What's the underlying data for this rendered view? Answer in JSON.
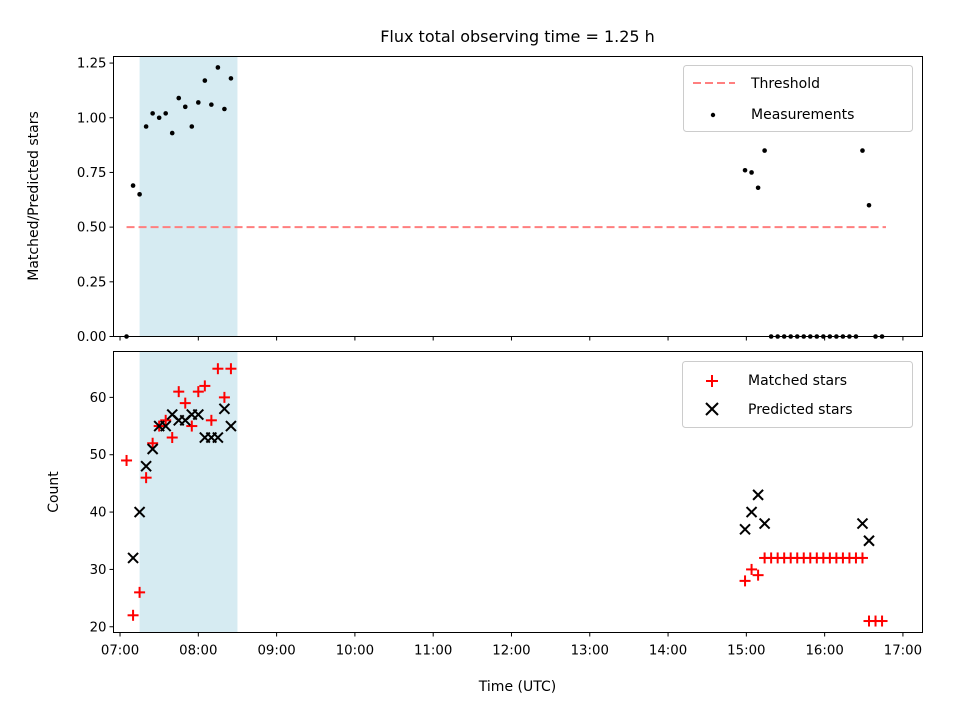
{
  "chart_data": [
    {
      "type": "scatter",
      "title": "Flux total observing time = 1.25 h",
      "xlabel": "",
      "ylabel": "Matched/Predicted stars",
      "xlim": [
        "06:55",
        "17:15"
      ],
      "ylim": [
        0,
        1.28
      ],
      "yticks": [
        "0.00",
        "0.25",
        "0.50",
        "0.75",
        "1.00",
        "1.25"
      ],
      "shaded_span": [
        "07:15",
        "08:30"
      ],
      "grid": false,
      "legend_position": "top-right",
      "threshold": {
        "label": "Threshold",
        "value": 0.5,
        "x_from": "07:05",
        "x_to": "16:47",
        "color": "#ff7f7f"
      },
      "series": [
        {
          "name": "Measurements",
          "color": "#000000",
          "points": [
            [
              "07:05",
              0.0
            ],
            [
              "07:10",
              0.69
            ],
            [
              "07:15",
              0.65
            ],
            [
              "07:20",
              0.96
            ],
            [
              "07:25",
              1.02
            ],
            [
              "07:30",
              1.0
            ],
            [
              "07:35",
              1.02
            ],
            [
              "07:40",
              0.93
            ],
            [
              "07:45",
              1.09
            ],
            [
              "07:50",
              1.05
            ],
            [
              "07:55",
              0.96
            ],
            [
              "08:00",
              1.07
            ],
            [
              "08:05",
              1.17
            ],
            [
              "08:10",
              1.06
            ],
            [
              "08:15",
              1.23
            ],
            [
              "08:20",
              1.04
            ],
            [
              "08:25",
              1.18
            ],
            [
              "14:59",
              0.76
            ],
            [
              "15:04",
              0.75
            ],
            [
              "15:09",
              0.68
            ],
            [
              "15:14",
              0.85
            ],
            [
              "15:19",
              0.0
            ],
            [
              "15:24",
              0.0
            ],
            [
              "15:29",
              0.0
            ],
            [
              "15:34",
              0.0
            ],
            [
              "15:39",
              0.0
            ],
            [
              "15:44",
              0.0
            ],
            [
              "15:49",
              0.0
            ],
            [
              "15:54",
              0.0
            ],
            [
              "15:59",
              0.0
            ],
            [
              "16:04",
              0.0
            ],
            [
              "16:09",
              0.0
            ],
            [
              "16:14",
              0.0
            ],
            [
              "16:19",
              0.0
            ],
            [
              "16:24",
              0.0
            ],
            [
              "16:29",
              0.85
            ],
            [
              "16:34",
              0.6
            ],
            [
              "16:39",
              0.0
            ],
            [
              "16:44",
              0.0
            ]
          ]
        }
      ]
    },
    {
      "type": "scatter",
      "title": "",
      "xlabel": "Time (UTC)",
      "ylabel": "Count",
      "xlim": [
        "06:55",
        "17:15"
      ],
      "ylim": [
        19,
        68
      ],
      "yticks": [
        "20",
        "30",
        "40",
        "50",
        "60"
      ],
      "xticks": [
        "07:00",
        "08:00",
        "09:00",
        "10:00",
        "11:00",
        "12:00",
        "13:00",
        "14:00",
        "15:00",
        "16:00",
        "17:00"
      ],
      "shaded_span": [
        "07:15",
        "08:30"
      ],
      "grid": false,
      "legend_position": "top-right",
      "series": [
        {
          "name": "Matched stars",
          "marker": "plus",
          "color": "#ff0000",
          "points": [
            [
              "07:05",
              49
            ],
            [
              "07:10",
              22
            ],
            [
              "07:15",
              26
            ],
            [
              "07:20",
              46
            ],
            [
              "07:25",
              52
            ],
            [
              "07:30",
              55
            ],
            [
              "07:35",
              56
            ],
            [
              "07:40",
              53
            ],
            [
              "07:45",
              61
            ],
            [
              "07:50",
              59
            ],
            [
              "07:55",
              55
            ],
            [
              "08:00",
              61
            ],
            [
              "08:05",
              62
            ],
            [
              "08:10",
              56
            ],
            [
              "08:15",
              65
            ],
            [
              "08:20",
              60
            ],
            [
              "08:25",
              65
            ],
            [
              "14:59",
              28
            ],
            [
              "15:04",
              30
            ],
            [
              "15:09",
              29
            ],
            [
              "15:14",
              32
            ],
            [
              "15:19",
              32
            ],
            [
              "15:24",
              32
            ],
            [
              "15:29",
              32
            ],
            [
              "15:34",
              32
            ],
            [
              "15:39",
              32
            ],
            [
              "15:44",
              32
            ],
            [
              "15:49",
              32
            ],
            [
              "15:54",
              32
            ],
            [
              "15:59",
              32
            ],
            [
              "16:04",
              32
            ],
            [
              "16:09",
              32
            ],
            [
              "16:14",
              32
            ],
            [
              "16:19",
              32
            ],
            [
              "16:24",
              32
            ],
            [
              "16:29",
              32
            ],
            [
              "16:34",
              21
            ],
            [
              "16:39",
              21
            ],
            [
              "16:44",
              21
            ]
          ]
        },
        {
          "name": "Predicted stars",
          "marker": "x",
          "color": "#000000",
          "points": [
            [
              "07:10",
              32
            ],
            [
              "07:15",
              40
            ],
            [
              "07:20",
              48
            ],
            [
              "07:25",
              51
            ],
            [
              "07:30",
              55
            ],
            [
              "07:35",
              55
            ],
            [
              "07:40",
              57
            ],
            [
              "07:45",
              56
            ],
            [
              "07:50",
              56
            ],
            [
              "07:55",
              57
            ],
            [
              "08:00",
              57
            ],
            [
              "08:05",
              53
            ],
            [
              "08:10",
              53
            ],
            [
              "08:15",
              53
            ],
            [
              "08:20",
              58
            ],
            [
              "08:25",
              55
            ],
            [
              "14:59",
              37
            ],
            [
              "15:04",
              40
            ],
            [
              "15:09",
              43
            ],
            [
              "15:14",
              38
            ],
            [
              "16:29",
              38
            ],
            [
              "16:34",
              35
            ]
          ]
        }
      ]
    }
  ]
}
